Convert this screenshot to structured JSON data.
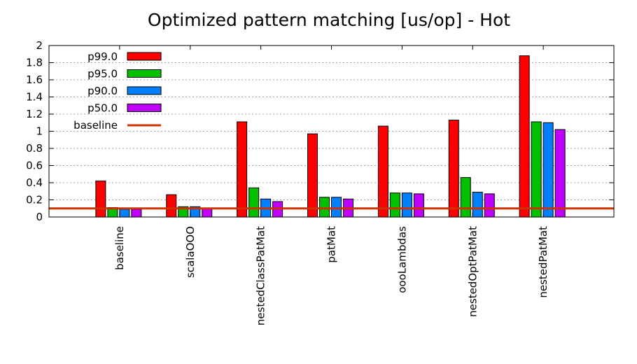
{
  "chart_data": {
    "type": "bar",
    "title": "Optimized pattern matching [us/op] - Hot",
    "xlabel": "",
    "ylabel": "",
    "ylim": [
      0,
      2
    ],
    "yticks": [
      "0",
      "0.2",
      "0.4",
      "0.6",
      "0.8",
      "1",
      "1.2",
      "1.4",
      "1.6",
      "1.8",
      "2"
    ],
    "grid": true,
    "legend_position": "top-left",
    "categories": [
      "baseline",
      "scalaOOO",
      "nestedClassPatMat",
      "patMat",
      "oooLambdas",
      "nestedOptPatMat",
      "nestedPatMat"
    ],
    "series": [
      {
        "name": "p99.0",
        "color": "#ff0000",
        "values": [
          0.42,
          0.26,
          1.11,
          0.97,
          1.06,
          1.13,
          1.88
        ]
      },
      {
        "name": "p95.0",
        "color": "#00c000",
        "values": [
          0.11,
          0.12,
          0.34,
          0.23,
          0.28,
          0.46,
          1.11
        ]
      },
      {
        "name": "p90.0",
        "color": "#0080ff",
        "values": [
          0.09,
          0.12,
          0.21,
          0.23,
          0.28,
          0.29,
          1.1
        ]
      },
      {
        "name": "p50.0",
        "color": "#c000ff",
        "values": [
          0.09,
          0.1,
          0.18,
          0.21,
          0.27,
          0.27,
          1.02
        ]
      }
    ],
    "baseline": {
      "name": "baseline",
      "value": 0.1,
      "color": "#cc3300"
    }
  }
}
